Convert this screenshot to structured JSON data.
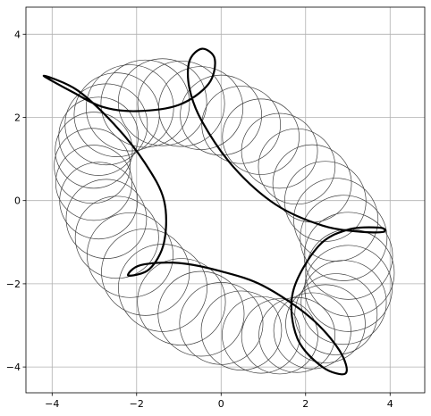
{
  "chart_data": {
    "type": "line",
    "title": "",
    "xlabel": "",
    "ylabel": "",
    "xlim": [
      -4.62,
      4.82
    ],
    "ylim": [
      -4.62,
      4.65
    ],
    "grid": true,
    "xticks": [
      -4,
      -2,
      0,
      2,
      4
    ],
    "yticks": [
      -4,
      -2,
      0,
      2,
      4
    ],
    "xtick_labels": [
      "−4",
      "−2",
      "0",
      "2",
      "4"
    ],
    "ytick_labels": [
      "−4",
      "−2",
      "0",
      "2",
      "4"
    ],
    "circles": {
      "count": 40,
      "color": "#404040",
      "description": "thin circles whose centres trace a tilted ellipse",
      "center_ellipse": {
        "cx": 0.0,
        "cy": -0.45,
        "semi_major": 3.55,
        "semi_minor": 2.15,
        "tilt_deg": -40
      },
      "radius_range": [
        0.9,
        1.05
      ]
    },
    "series": [
      {
        "color": "#000000",
        "points": [
          [
            -4.2,
            3.0
          ],
          [
            -3.5,
            2.6
          ],
          [
            -2.8,
            2.25
          ],
          [
            -2.0,
            2.15
          ],
          [
            -1.0,
            2.3
          ],
          [
            -0.3,
            2.8
          ],
          [
            -0.15,
            3.4
          ],
          [
            -0.45,
            3.65
          ],
          [
            -0.75,
            3.35
          ],
          [
            -0.75,
            2.7
          ],
          [
            -0.45,
            1.9
          ],
          [
            0.3,
            0.8
          ],
          [
            1.3,
            -0.1
          ],
          [
            2.4,
            -0.6
          ],
          [
            3.3,
            -0.75
          ],
          [
            3.85,
            -0.75
          ],
          [
            3.75,
            -0.65
          ],
          [
            3.0,
            -0.7
          ],
          [
            2.3,
            -1.1
          ],
          [
            1.7,
            -2.2
          ],
          [
            1.8,
            -3.3
          ],
          [
            2.4,
            -4.0
          ],
          [
            2.95,
            -4.15
          ],
          [
            2.8,
            -3.6
          ],
          [
            2.1,
            -2.8
          ],
          [
            1.0,
            -2.05
          ],
          [
            0.0,
            -1.7
          ],
          [
            -1.0,
            -1.5
          ],
          [
            -1.9,
            -1.55
          ],
          [
            -2.2,
            -1.8
          ],
          [
            -1.7,
            -1.65
          ],
          [
            -1.35,
            -1.0
          ],
          [
            -1.35,
            0.0
          ],
          [
            -1.8,
            0.9
          ],
          [
            -2.5,
            1.8
          ],
          [
            -3.4,
            2.65
          ],
          [
            -4.2,
            3.0
          ]
        ]
      }
    ]
  }
}
